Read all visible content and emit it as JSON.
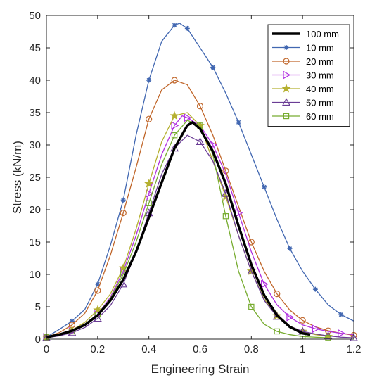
{
  "chart_data": {
    "type": "line",
    "xlabel": "Engineering Strain",
    "ylabel": "Stress (kN/m)",
    "xlim": [
      0,
      1.2
    ],
    "ylim": [
      0,
      50
    ],
    "xticks": [
      0,
      0.2,
      0.4,
      0.6,
      0.8,
      1,
      1.2
    ],
    "xtick_labels": [
      "0",
      "0.2",
      "0.4",
      "0.6",
      "0.8",
      "1",
      "1.2"
    ],
    "yticks": [
      0,
      5,
      10,
      15,
      20,
      25,
      30,
      35,
      40,
      45,
      50
    ],
    "ytick_labels": [
      "0",
      "5",
      "10",
      "15",
      "20",
      "25",
      "30",
      "35",
      "40",
      "45",
      "50"
    ],
    "grid": false,
    "legend_position": "top-right",
    "series": [
      {
        "name": "100 mm",
        "color": "#000000",
        "marker": "none",
        "x": [
          0,
          0.05,
          0.1,
          0.15,
          0.2,
          0.25,
          0.3,
          0.35,
          0.4,
          0.45,
          0.5,
          0.55,
          0.57,
          0.6,
          0.65,
          0.7,
          0.75,
          0.8,
          0.85,
          0.9,
          0.95,
          1.0,
          1.03
        ],
        "y": [
          0.3,
          0.7,
          1.3,
          2.2,
          3.7,
          6.0,
          9.2,
          13.5,
          18.8,
          24.2,
          29.5,
          33.0,
          33.5,
          32.5,
          29.0,
          24.0,
          17.5,
          11.5,
          6.8,
          3.7,
          1.9,
          0.9,
          0.7
        ]
      },
      {
        "name": "10 mm",
        "color": "#4167b1",
        "marker": "asterisk",
        "x": [
          0,
          0.05,
          0.1,
          0.15,
          0.2,
          0.25,
          0.3,
          0.35,
          0.4,
          0.45,
          0.5,
          0.52,
          0.55,
          0.6,
          0.65,
          0.7,
          0.75,
          0.8,
          0.85,
          0.9,
          0.95,
          1.0,
          1.05,
          1.1,
          1.15,
          1.2
        ],
        "y": [
          0.3,
          1.5,
          2.8,
          4.6,
          8.5,
          14.5,
          21.5,
          31.5,
          40.0,
          46.0,
          48.5,
          48.8,
          48.0,
          45.0,
          42.0,
          38.0,
          33.5,
          28.5,
          23.5,
          18.5,
          14.0,
          10.5,
          7.7,
          5.3,
          3.8,
          2.8
        ]
      },
      {
        "name": "20 mm",
        "color": "#c0662a",
        "marker": "circle",
        "x": [
          0,
          0.05,
          0.1,
          0.15,
          0.2,
          0.25,
          0.3,
          0.35,
          0.4,
          0.45,
          0.5,
          0.55,
          0.6,
          0.65,
          0.7,
          0.75,
          0.8,
          0.85,
          0.9,
          0.95,
          1.0,
          1.05,
          1.1,
          1.15,
          1.2
        ],
        "y": [
          0.3,
          1.0,
          2.2,
          4.0,
          7.5,
          13.0,
          19.5,
          26.5,
          34.0,
          38.5,
          40.0,
          39.3,
          36.0,
          31.5,
          26.0,
          20.5,
          15.0,
          10.5,
          7.0,
          4.5,
          2.9,
          1.9,
          1.3,
          0.9,
          0.6
        ]
      },
      {
        "name": "30 mm",
        "color": "#b02fe0",
        "marker": "triangle-right",
        "x": [
          0,
          0.05,
          0.1,
          0.15,
          0.2,
          0.25,
          0.3,
          0.35,
          0.4,
          0.45,
          0.5,
          0.53,
          0.55,
          0.6,
          0.65,
          0.7,
          0.75,
          0.8,
          0.85,
          0.9,
          0.95,
          1.0,
          1.05,
          1.1,
          1.15,
          1.2
        ],
        "y": [
          0.3,
          0.6,
          1.2,
          2.2,
          3.8,
          6.5,
          10.5,
          16.0,
          22.5,
          28.5,
          33.0,
          34.5,
          34.2,
          33.0,
          30.0,
          25.5,
          19.5,
          13.5,
          8.5,
          5.3,
          3.4,
          2.2,
          1.6,
          1.2,
          0.9,
          0.7
        ]
      },
      {
        "name": "40 mm",
        "color": "#b5b030",
        "marker": "star",
        "x": [
          0,
          0.05,
          0.1,
          0.15,
          0.2,
          0.25,
          0.3,
          0.35,
          0.4,
          0.45,
          0.5,
          0.55,
          0.6,
          0.65,
          0.7,
          0.75,
          0.8,
          0.85,
          0.9,
          0.95,
          1.0,
          1.05,
          1.1
        ],
        "y": [
          0.3,
          0.7,
          1.4,
          2.6,
          4.5,
          7.0,
          11.0,
          17.0,
          24.0,
          30.5,
          34.5,
          35.0,
          33.0,
          27.5,
          22.0,
          16.0,
          10.5,
          6.2,
          3.6,
          2.0,
          1.2,
          0.7,
          0.4
        ]
      },
      {
        "name": "50 mm",
        "color": "#6a3c95",
        "marker": "triangle-up",
        "x": [
          0,
          0.05,
          0.1,
          0.15,
          0.2,
          0.25,
          0.3,
          0.35,
          0.4,
          0.45,
          0.5,
          0.55,
          0.6,
          0.65,
          0.7,
          0.75,
          0.8,
          0.85,
          0.9,
          0.95,
          1.0,
          1.05,
          1.1,
          1.15,
          1.2
        ],
        "y": [
          0.2,
          0.5,
          1.0,
          1.8,
          3.2,
          5.2,
          8.5,
          13.5,
          19.5,
          25.5,
          29.5,
          31.5,
          30.5,
          27.5,
          22.5,
          16.0,
          10.5,
          6.0,
          3.5,
          2.0,
          1.2,
          0.8,
          0.5,
          0.3,
          0.2
        ]
      },
      {
        "name": "60 mm",
        "color": "#77ac30",
        "marker": "square",
        "x": [
          0,
          0.05,
          0.1,
          0.15,
          0.2,
          0.25,
          0.3,
          0.35,
          0.4,
          0.45,
          0.5,
          0.55,
          0.6,
          0.65,
          0.7,
          0.75,
          0.8,
          0.85,
          0.9,
          0.95,
          1.0,
          1.05,
          1.1
        ],
        "y": [
          0.3,
          0.6,
          1.2,
          2.2,
          3.8,
          6.3,
          10.0,
          15.0,
          21.0,
          27.0,
          31.5,
          33.8,
          33.0,
          28.5,
          19.0,
          10.5,
          5.0,
          2.3,
          1.2,
          0.7,
          0.4,
          0.3,
          0.2
        ]
      }
    ]
  }
}
